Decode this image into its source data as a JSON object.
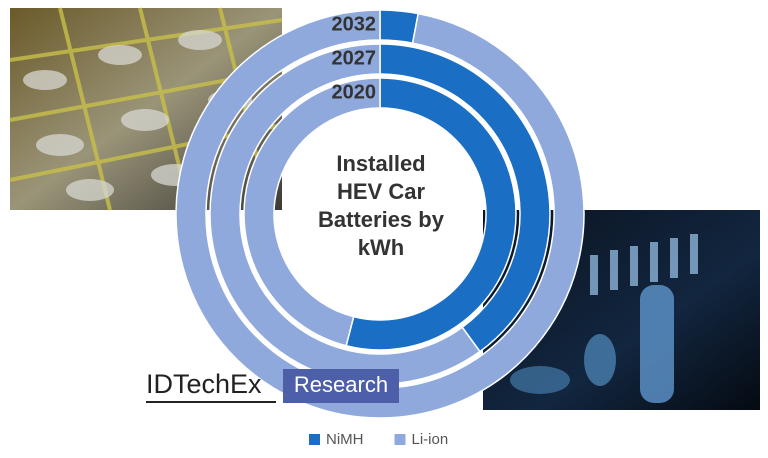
{
  "chart_data": {
    "type": "donut",
    "title": "Installed HEV Car Batteries by kWh",
    "categories": [
      "2020",
      "2027",
      "2032"
    ],
    "series": [
      {
        "name": "NiMH",
        "color": "#1a6fc4",
        "values": [
          54,
          40,
          3
        ]
      },
      {
        "name": "Li-ion",
        "color": "#8fa9dc",
        "values": [
          46,
          60,
          97
        ]
      }
    ]
  },
  "logo": {
    "brand": "IDTechEx",
    "tag": "Research"
  }
}
